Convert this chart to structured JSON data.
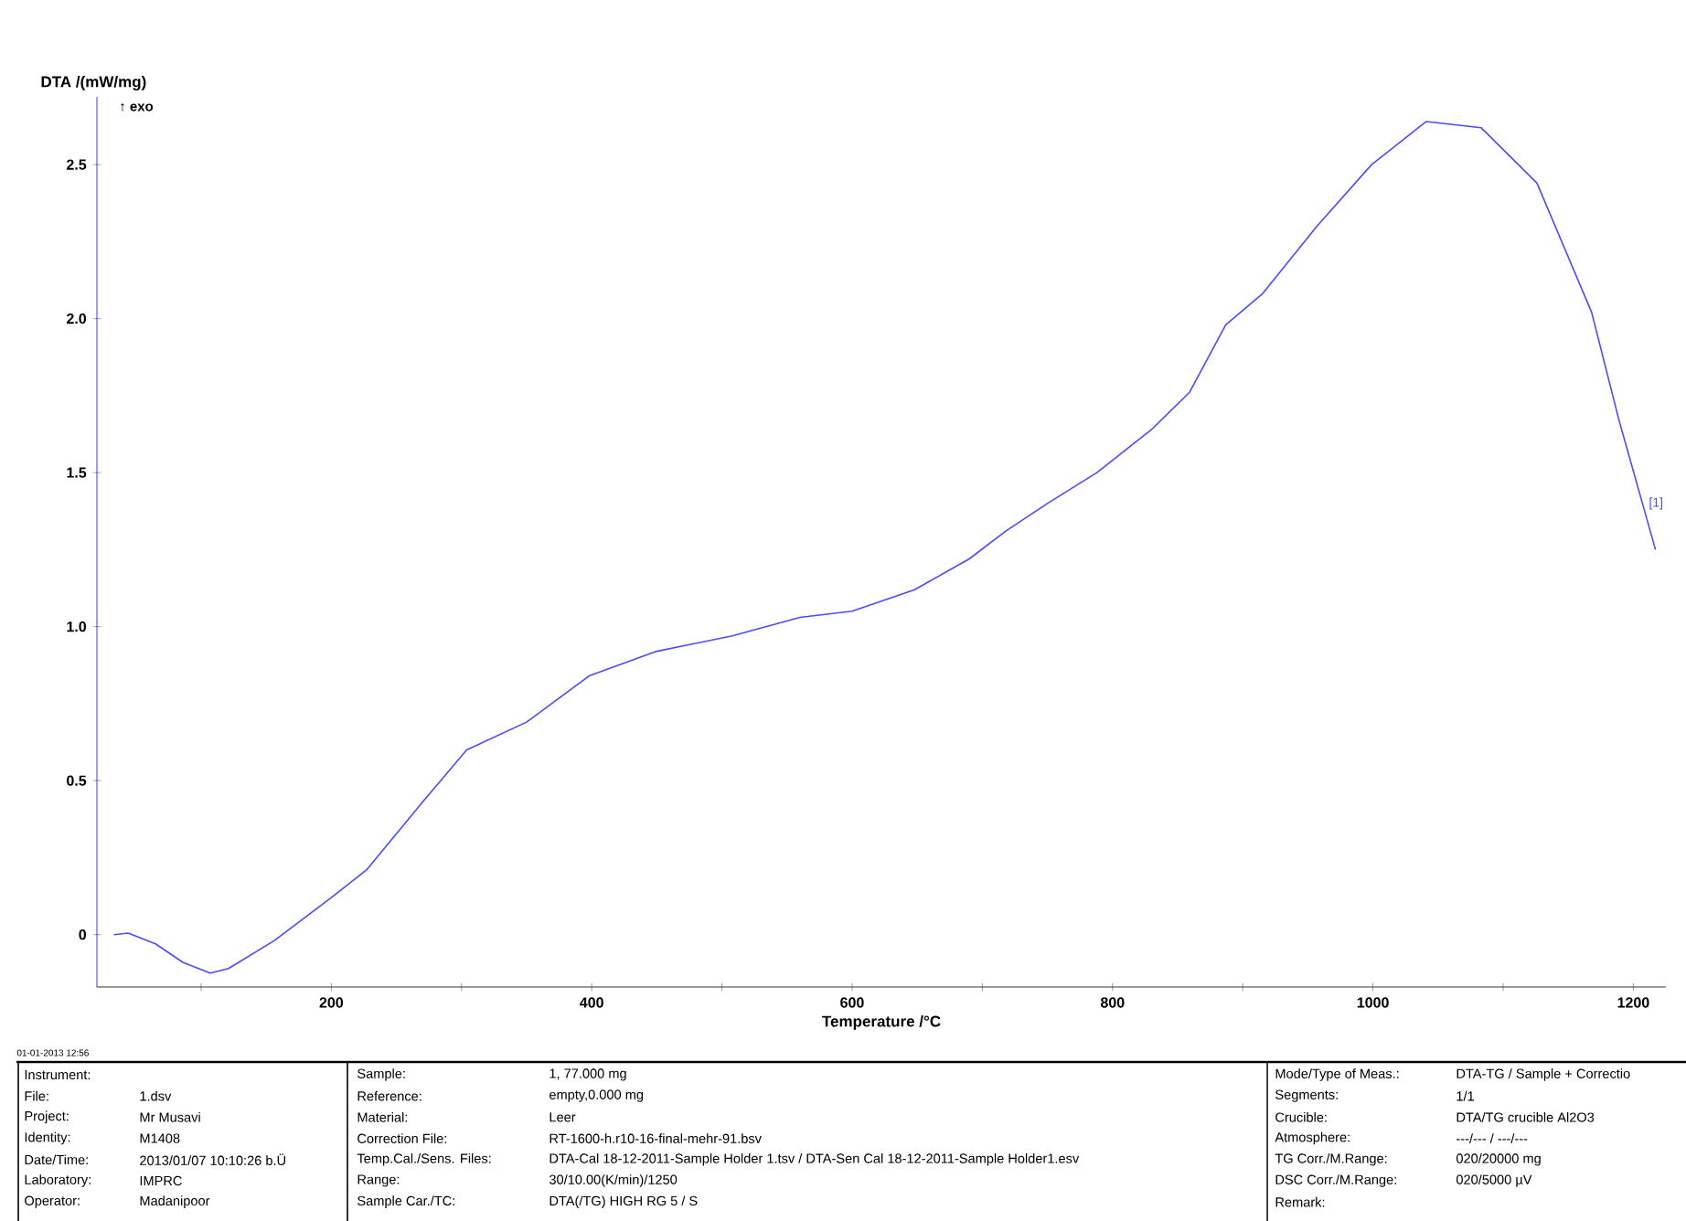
{
  "chart_data": {
    "type": "line",
    "xlabel": "Temperature /°C",
    "ylabel": "DTA /(mW/mg)",
    "x": [
      33,
      44,
      65,
      86,
      107,
      121,
      156,
      200,
      227,
      270,
      304,
      350,
      398,
      450,
      508,
      560,
      600,
      648,
      690,
      718,
      750,
      788,
      830,
      859,
      887,
      915,
      957,
      999,
      1041,
      1083,
      1126,
      1168,
      1189,
      1207,
      1217
    ],
    "values": [
      0.0,
      0.005,
      -0.03,
      -0.09,
      -0.125,
      -0.11,
      -0.02,
      0.12,
      0.21,
      0.43,
      0.6,
      0.69,
      0.84,
      0.92,
      0.97,
      1.03,
      1.05,
      1.12,
      1.22,
      1.31,
      1.4,
      1.5,
      1.64,
      1.76,
      1.98,
      2.08,
      2.3,
      2.5,
      2.64,
      2.62,
      2.44,
      2.02,
      1.67,
      1.4,
      1.25
    ],
    "color": "#4a4aff",
    "xlim": [
      20,
      1225
    ],
    "ylim": [
      -0.17,
      2.72
    ],
    "xticks": [
      {
        "value": 100,
        "label": null
      },
      200,
      {
        "value": 300,
        "label": null
      },
      400,
      {
        "value": 500,
        "label": null
      },
      600,
      {
        "value": 700,
        "label": null
      },
      800,
      {
        "value": 900,
        "label": null
      },
      1000,
      {
        "value": 1100,
        "label": null
      },
      1200
    ],
    "yticks": [
      0,
      0.5,
      {
        "value": 1,
        "label": "1.0"
      },
      1.5,
      {
        "value": 2,
        "label": "2.0"
      },
      2.5
    ],
    "annotations": [
      {
        "text": "[1]",
        "x": 1207,
        "y": 1.4
      },
      "↑ exo",
      "01-01-2013 12:56",
      "Instrument:",
      "File:",
      "1.dsv",
      "Project:",
      "Mr Musavi",
      "Identity:",
      "M1408",
      "Date/Time:",
      "2013/01/07 10:10:26 b.Ü",
      "Laboratory:",
      "IMPRC",
      "Operator:",
      "Madanipoor",
      "Sample:",
      "1, 77.000 mg",
      "Reference:",
      "empty,0.000 mg",
      "Material:",
      "Leer",
      "Correction File:",
      "RT-1600-h.r10-16-final-mehr-91.bsv",
      "Temp.Cal./Sens. Files:",
      "DTA-Cal 18-12-2011-Sample Holder 1.tsv / DTA-Sen Cal 18-12-2011-Sample Holder1.esv",
      "Range:",
      "30/10.00(K/min)/1250",
      "Sample Car./TC:",
      "DTA(/TG) HIGH RG 5 / S",
      "Mode/Type of Meas.:",
      "DTA-TG / Sample + Correctio",
      "Segments:",
      "1/1",
      "Crucible:",
      "DTA/TG crucible Al2O3",
      "Atmosphere:",
      "---/--- / ---/---",
      "TG Corr./M.Range:",
      "020/20000 mg",
      "DSC Corr./M.Range:",
      "020/5000 µV",
      "Remark:"
    ]
  }
}
